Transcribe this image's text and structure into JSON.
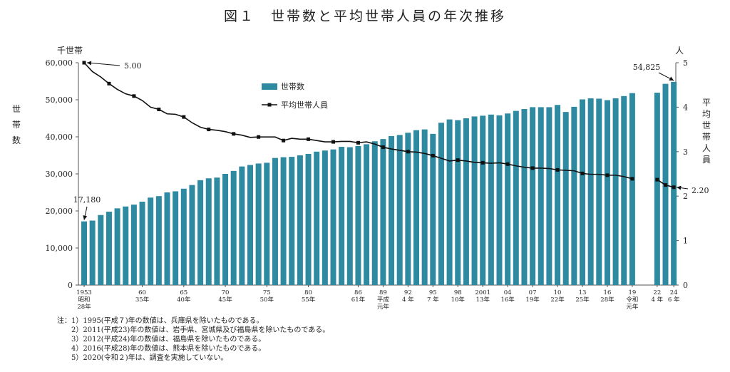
{
  "chart_data": {
    "type": "bar+line",
    "title": "図１　世帯数と平均世帯人員の年次推移",
    "left_axis": {
      "unit": "千世帯",
      "label": "世帯数",
      "range": [
        0,
        60000
      ],
      "ticks": [
        "0",
        "10,000",
        "20,000",
        "30,000",
        "40,000",
        "50,000",
        "60,000"
      ]
    },
    "right_axis": {
      "unit": "人",
      "label": "平均世帯人員",
      "range": [
        0,
        5
      ],
      "ticks": [
        "0",
        "1",
        "2",
        "3",
        "4",
        "5"
      ]
    },
    "legend": {
      "bar": "世帯数",
      "line": "平均世帯人員",
      "placement": "top-center"
    },
    "x_ticks": [
      {
        "year": 1953,
        "lines": [
          "1953",
          "昭和",
          "28年"
        ]
      },
      {
        "year": 1960,
        "lines": [
          "60",
          "35年"
        ]
      },
      {
        "year": 1965,
        "lines": [
          "65",
          "40年"
        ]
      },
      {
        "year": 1970,
        "lines": [
          "70",
          "45年"
        ]
      },
      {
        "year": 1975,
        "lines": [
          "75",
          "50年"
        ]
      },
      {
        "year": 1980,
        "lines": [
          "80",
          "55年"
        ]
      },
      {
        "year": 1986,
        "lines": [
          "86",
          "61年"
        ]
      },
      {
        "year": 1989,
        "lines": [
          "89",
          "平成",
          "元年"
        ]
      },
      {
        "year": 1992,
        "lines": [
          "92",
          "4 年"
        ]
      },
      {
        "year": 1995,
        "lines": [
          "95",
          "7 年"
        ]
      },
      {
        "year": 1998,
        "lines": [
          "98",
          "10年"
        ]
      },
      {
        "year": 2001,
        "lines": [
          "2001",
          "13年"
        ]
      },
      {
        "year": 2004,
        "lines": [
          "04",
          "16年"
        ]
      },
      {
        "year": 2007,
        "lines": [
          "07",
          "19年"
        ]
      },
      {
        "year": 2010,
        "lines": [
          "10",
          "22年"
        ]
      },
      {
        "year": 2013,
        "lines": [
          "13",
          "25年"
        ]
      },
      {
        "year": 2016,
        "lines": [
          "16",
          "28年"
        ]
      },
      {
        "year": 2019,
        "lines": [
          "19",
          "令和",
          "元年"
        ]
      },
      {
        "year": 2022,
        "lines": [
          "22",
          "4 年"
        ]
      },
      {
        "year": 2024,
        "lines": [
          "24",
          "6 年"
        ]
      }
    ],
    "years": [
      1953,
      1954,
      1955,
      1956,
      1957,
      1958,
      1959,
      1960,
      1961,
      1962,
      1963,
      1964,
      1965,
      1966,
      1967,
      1968,
      1969,
      1970,
      1971,
      1972,
      1973,
      1974,
      1975,
      1976,
      1977,
      1978,
      1979,
      1980,
      1981,
      1982,
      1983,
      1984,
      1985,
      1986,
      1987,
      1988,
      1989,
      1990,
      1991,
      1992,
      1993,
      1994,
      1995,
      1996,
      1997,
      1998,
      1999,
      2000,
      2001,
      2002,
      2003,
      2004,
      2005,
      2006,
      2007,
      2008,
      2009,
      2010,
      2011,
      2012,
      2013,
      2014,
      2015,
      2016,
      2017,
      2018,
      2019,
      2020,
      2021,
      2022,
      2023,
      2024
    ],
    "households": [
      17180,
      17400,
      18900,
      19800,
      20700,
      21200,
      21700,
      22500,
      23600,
      24000,
      25000,
      25300,
      26000,
      27000,
      28300,
      28800,
      29000,
      30000,
      30800,
      32000,
      32400,
      32800,
      33000,
      34300,
      34500,
      34600,
      35000,
      35400,
      36000,
      36300,
      36600,
      37300,
      37200,
      37500,
      38000,
      38800,
      39400,
      40200,
      40500,
      41100,
      41800,
      42000,
      40800,
      43800,
      44700,
      44500,
      45000,
      45500,
      45700,
      46000,
      45800,
      46300,
      47000,
      47500,
      48000,
      48000,
      48000,
      48600,
      46700,
      48100,
      50100,
      50400,
      50300,
      49900,
      50400,
      51000,
      51800,
      null,
      null,
      51900,
      54300,
      54825
    ],
    "avg_members": [
      5.0,
      4.8,
      4.68,
      4.53,
      4.4,
      4.3,
      4.25,
      4.15,
      4.0,
      3.95,
      3.85,
      3.84,
      3.78,
      3.65,
      3.55,
      3.5,
      3.48,
      3.45,
      3.4,
      3.37,
      3.32,
      3.33,
      3.33,
      3.33,
      3.25,
      3.3,
      3.28,
      3.28,
      3.25,
      3.22,
      3.22,
      3.23,
      3.23,
      3.2,
      3.22,
      3.17,
      3.1,
      3.06,
      3.03,
      3.0,
      2.99,
      2.96,
      2.91,
      2.85,
      2.79,
      2.81,
      2.79,
      2.76,
      2.75,
      2.74,
      2.75,
      2.72,
      2.68,
      2.65,
      2.63,
      2.63,
      2.62,
      2.59,
      2.58,
      2.57,
      2.51,
      2.49,
      2.49,
      2.47,
      2.47,
      2.44,
      2.39,
      null,
      null,
      2.37,
      2.25,
      2.2
    ],
    "annotations": [
      {
        "year": 1953,
        "text": "17,180",
        "series": "households"
      },
      {
        "year": 1953,
        "text": "5.00",
        "series": "avg_members"
      },
      {
        "year": 2024,
        "text": "54,825",
        "series": "households"
      },
      {
        "year": 2024,
        "text": "2.20",
        "series": "avg_members"
      }
    ],
    "notes": [
      "注：1）1995(平成７)年の数値は、兵庫県を除いたものである。",
      "　　2）2011(平成23)年の数値は、岩手県、宮城県及び福島県を除いたものである。",
      "　　3）2012(平成24)年の数値は、福島県を除いたものである。",
      "　　4）2016(平成28)年の数値は、熊本県を除いたものである。",
      "　　5）2020(令和２)年は、調査を実施していない。"
    ],
    "colors": {
      "bar": "#2e8aa0",
      "line": "#111111",
      "axis": "#555555"
    }
  }
}
